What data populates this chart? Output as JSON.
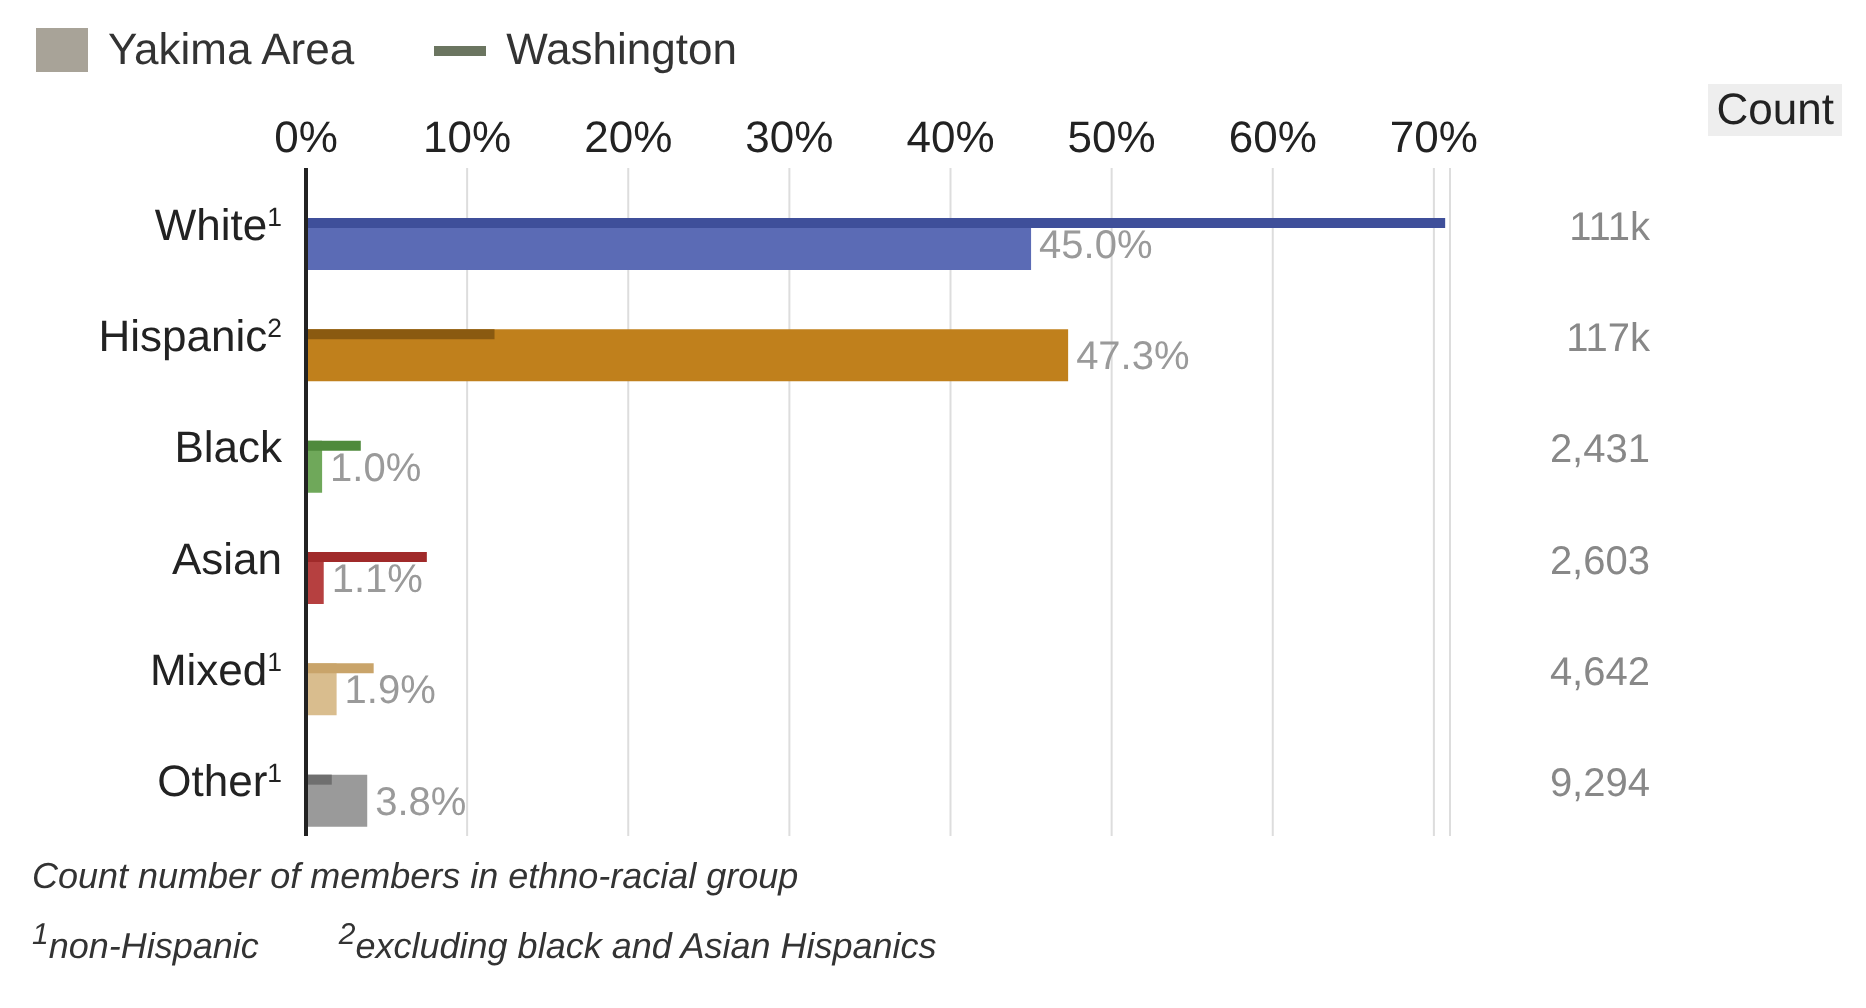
{
  "chart_data": {
    "type": "bar",
    "orientation": "horizontal",
    "categories": [
      "White$^{1}$",
      "Hispanic$^{2}$",
      "Black",
      "Asian",
      "Mixed$^{1}$",
      "Other$^{1}$"
    ],
    "series": [
      {
        "name": "Yakima Area",
        "color": "#a8a398",
        "colors": [
          "#5b6bb5",
          "#c0801c",
          "#6fa85a",
          "#b64040",
          "#d9bd8e",
          "#9a9a9a"
        ],
        "values": [
          45.0,
          47.3,
          1.0,
          1.1,
          1.9,
          3.8
        ],
        "value_labels": [
          "45.0%",
          "47.3%",
          "1.0%",
          "1.1%",
          "1.9%",
          "3.8%"
        ]
      },
      {
        "name": "Washington",
        "color": "#6b7560",
        "colors": [
          "#3f4f9a",
          "#8a5a10",
          "#4f8a3c",
          "#a02a2a",
          "#c9a46a",
          "#6f6f6f"
        ],
        "values": [
          70.7,
          11.7,
          3.4,
          7.5,
          4.2,
          1.6
        ]
      }
    ],
    "xlim": [
      0,
      71
    ],
    "xticks": [
      {
        "value": 0,
        "label": "0%"
      },
      {
        "value": 10,
        "label": "10%"
      },
      {
        "value": 20,
        "label": "20%"
      },
      {
        "value": 30,
        "label": "30%"
      },
      {
        "value": 40,
        "label": "40%"
      },
      {
        "value": 50,
        "label": "50%"
      },
      {
        "value": 60,
        "label": "60%"
      },
      {
        "value": 70,
        "label": "70%"
      }
    ],
    "grid": "x",
    "legend": "top left",
    "annotations": [
      "Count",
      "111k",
      "117k",
      "2,431",
      "2,603",
      "4,642",
      "9,294",
      "Count number of members in ethno-racial group",
      "$^{1}$non-Hispanic",
      "$^{2}$excluding black and Asian Hispanics"
    ]
  }
}
